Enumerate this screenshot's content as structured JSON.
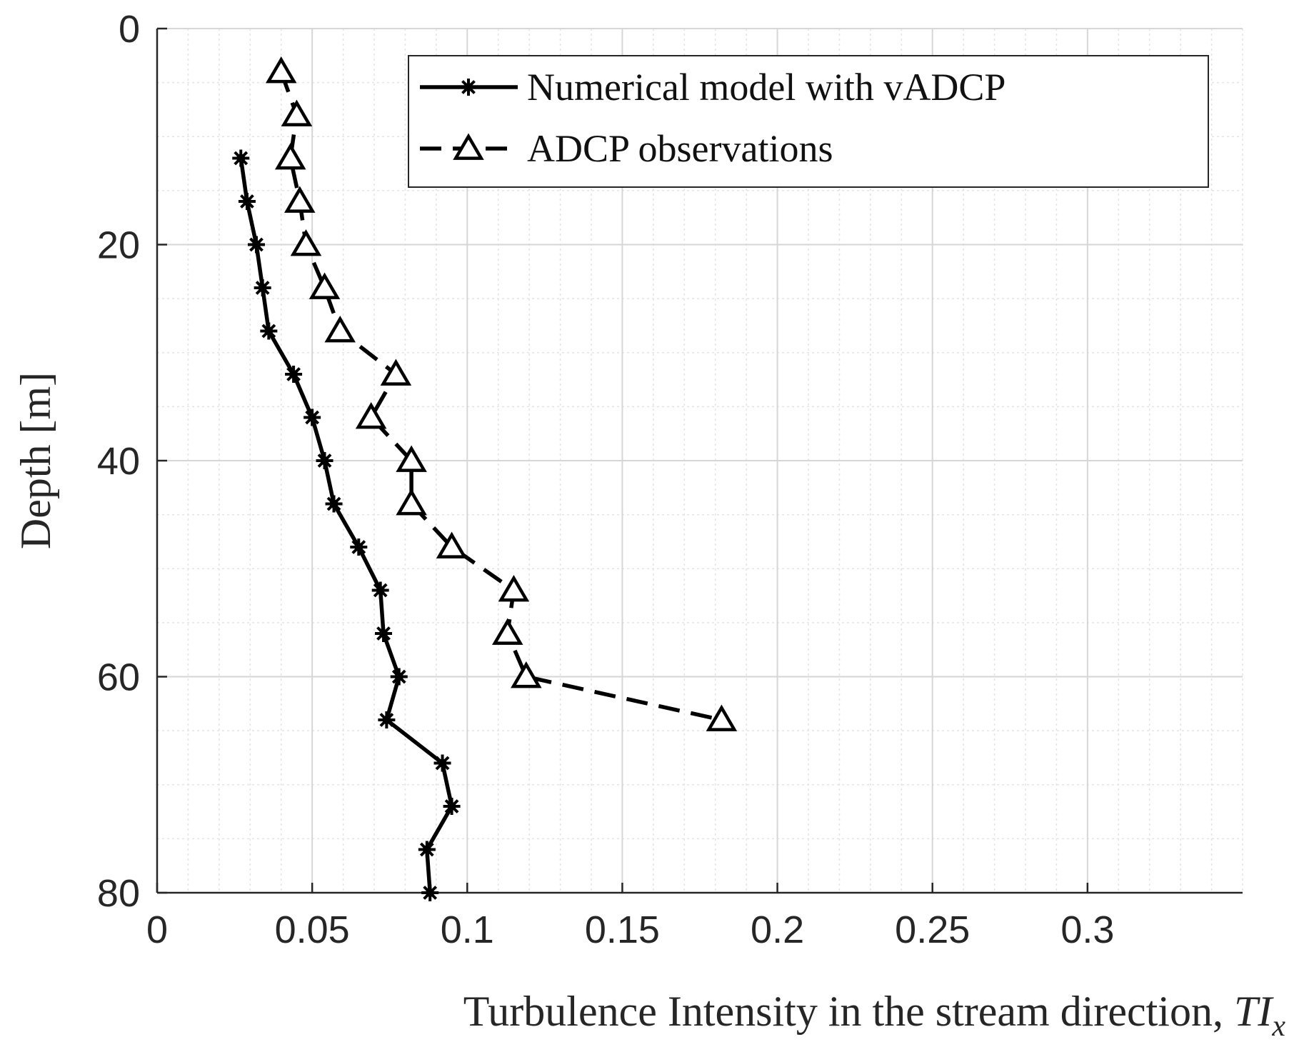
{
  "chart_data": {
    "type": "line",
    "title": "",
    "xlabel": "Turbulence Intensity in the stream direction, ",
    "xlabel_math": "TI",
    "xlabel_math_sub": "x",
    "ylabel": "Depth [m]",
    "xlim": [
      0,
      0.35
    ],
    "ylim": [
      0,
      80
    ],
    "y_reversed": true,
    "x_ticks": [
      0,
      0.05,
      0.1,
      0.15,
      0.2,
      0.25,
      0.3
    ],
    "x_tick_labels": [
      "0",
      "0.05",
      "0.1",
      "0.15",
      "0.2",
      "0.25",
      "0.3"
    ],
    "y_ticks": [
      0,
      20,
      40,
      60,
      80
    ],
    "y_tick_labels": [
      "0",
      "20",
      "40",
      "60",
      "80"
    ],
    "grid": true,
    "minor_grid": true,
    "legend_position": "top-right",
    "series": [
      {
        "name": "Numerical model with vADCP",
        "style": "solid",
        "marker": "asterisk",
        "color": "#000000",
        "x": [
          0.027,
          0.029,
          0.032,
          0.034,
          0.036,
          0.044,
          0.05,
          0.054,
          0.057,
          0.065,
          0.072,
          0.073,
          0.078,
          0.074,
          0.092,
          0.095,
          0.087,
          0.088
        ],
        "y": [
          12,
          16,
          20,
          24,
          28,
          32,
          36,
          40,
          44,
          48,
          52,
          56,
          60,
          64,
          68,
          72,
          76,
          80
        ]
      },
      {
        "name": "ADCP observations",
        "style": "dashed",
        "marker": "triangle",
        "color": "#000000",
        "x": [
          0.04,
          0.045,
          0.043,
          0.046,
          0.048,
          0.054,
          0.059,
          0.077,
          0.069,
          0.082,
          0.082,
          0.095,
          0.115,
          0.113,
          0.119,
          0.182
        ],
        "y": [
          4,
          8,
          12,
          16,
          20,
          24,
          28,
          32,
          36,
          40,
          44,
          48,
          52,
          56,
          60,
          64
        ]
      }
    ]
  }
}
